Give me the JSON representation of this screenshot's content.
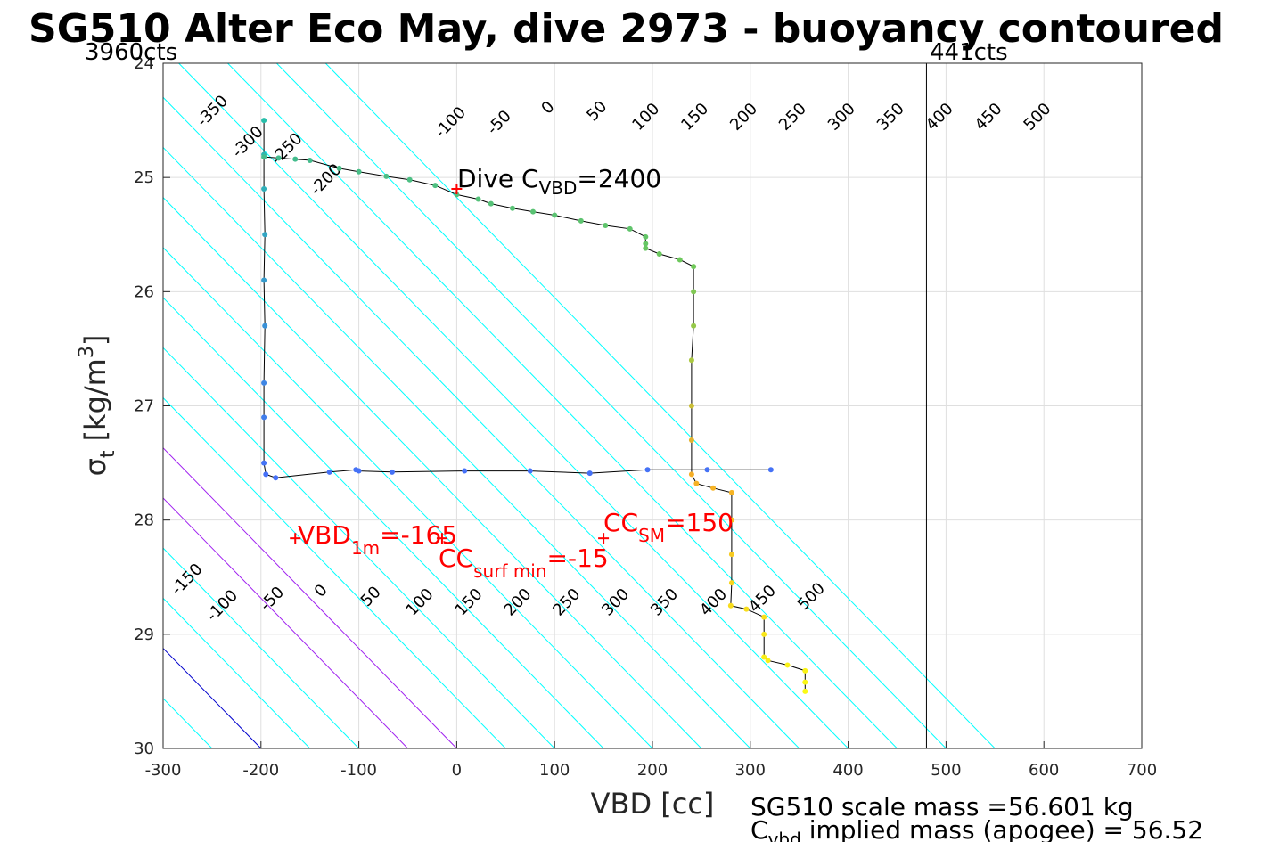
{
  "chart_data": {
    "type": "scatter",
    "title": "SG510 Alter Eco May, dive 2973 - buoyancy contoured",
    "xlabel": "VBD [cc]",
    "ylabel": "σt [kg/m3]",
    "ylabel_parts": {
      "sym": "σ",
      "sub": "t",
      "unit_pre": "[kg/m",
      "sup": "3",
      "unit_post": "]"
    },
    "xlim": [
      -300,
      700
    ],
    "ylim": [
      24,
      30
    ],
    "y_reversed": true,
    "grid": true,
    "x_ticks": [
      "-300",
      "-200",
      "-100",
      "0",
      "100",
      "200",
      "300",
      "400",
      "500",
      "600",
      "700"
    ],
    "y_ticks": [
      "24",
      "25",
      "26",
      "27",
      "28",
      "29",
      "30"
    ],
    "count_labels": {
      "left": "3960cts",
      "right": "441cts",
      "right_vbd": 480
    },
    "contour_slope_cc_per_sigma": 114,
    "contours": [
      {
        "level": -350,
        "color": "#00ffff"
      },
      {
        "level": -300,
        "color": "#00ffff"
      },
      {
        "level": -250,
        "color": "#00ffff"
      },
      {
        "level": -200,
        "color": "#00ffff"
      },
      {
        "level": -150,
        "color": "#00ffff"
      },
      {
        "level": -100,
        "color": "#00ffff"
      },
      {
        "level": -50,
        "color": "#00ffff"
      },
      {
        "level": 0,
        "color": "#0000cc"
      },
      {
        "level": 50,
        "color": "#00ffff"
      },
      {
        "level": 100,
        "color": "#00ffff"
      },
      {
        "level": 150,
        "color": "#a020f0"
      },
      {
        "level": 200,
        "color": "#a020f0"
      },
      {
        "level": 250,
        "color": "#00ffff"
      },
      {
        "level": 300,
        "color": "#00ffff"
      },
      {
        "level": 350,
        "color": "#00ffff"
      },
      {
        "level": 400,
        "color": "#00ffff"
      },
      {
        "level": 450,
        "color": "#00ffff"
      },
      {
        "level": 500,
        "color": "#00ffff"
      },
      {
        "level": 550,
        "color": "#00ffff"
      },
      {
        "level": 600,
        "color": "#00ffff"
      },
      {
        "level": 650,
        "color": "#00ffff"
      },
      {
        "level": 700,
        "color": "#00ffff"
      },
      {
        "level": 750,
        "color": "#00ffff"
      }
    ],
    "contour_labels_top": [
      {
        "text": "-350",
        "vbd": -246,
        "sigma": 24.45
      },
      {
        "text": "-300",
        "vbd": -210,
        "sigma": 24.72
      },
      {
        "text": "-250",
        "vbd": -170,
        "sigma": 24.78
      },
      {
        "text": "-200",
        "vbd": -130,
        "sigma": 25.05
      },
      {
        "text": "-100",
        "vbd": -3,
        "sigma": 24.55
      },
      {
        "text": "-50",
        "vbd": 47,
        "sigma": 24.55
      },
      {
        "text": "0",
        "vbd": 97,
        "sigma": 24.42
      },
      {
        "text": "50",
        "vbd": 147,
        "sigma": 24.45
      },
      {
        "text": "100",
        "vbd": 197,
        "sigma": 24.5
      },
      {
        "text": "150",
        "vbd": 247,
        "sigma": 24.5
      },
      {
        "text": "200",
        "vbd": 297,
        "sigma": 24.5
      },
      {
        "text": "250",
        "vbd": 347,
        "sigma": 24.5
      },
      {
        "text": "300",
        "vbd": 397,
        "sigma": 24.5
      },
      {
        "text": "350",
        "vbd": 447,
        "sigma": 24.5
      },
      {
        "text": "400",
        "vbd": 497,
        "sigma": 24.5
      },
      {
        "text": "450",
        "vbd": 547,
        "sigma": 24.5
      },
      {
        "text": "500",
        "vbd": 597,
        "sigma": 24.5
      }
    ],
    "contour_labels_bottom": [
      {
        "text": "-150",
        "vbd": -272,
        "sigma": 28.55
      },
      {
        "text": "-100",
        "vbd": -236,
        "sigma": 28.78
      },
      {
        "text": "-50",
        "vbd": -185,
        "sigma": 28.72
      },
      {
        "text": "0",
        "vbd": -135,
        "sigma": 28.65
      },
      {
        "text": "50",
        "vbd": -84,
        "sigma": 28.7
      },
      {
        "text": "100",
        "vbd": -34,
        "sigma": 28.75
      },
      {
        "text": "150",
        "vbd": 16,
        "sigma": 28.75
      },
      {
        "text": "200",
        "vbd": 66,
        "sigma": 28.75
      },
      {
        "text": "250",
        "vbd": 116,
        "sigma": 28.75
      },
      {
        "text": "300",
        "vbd": 166,
        "sigma": 28.75
      },
      {
        "text": "350",
        "vbd": 216,
        "sigma": 28.75
      },
      {
        "text": "400",
        "vbd": 266,
        "sigma": 28.75
      },
      {
        "text": "450",
        "vbd": 316,
        "sigma": 28.72
      },
      {
        "text": "500",
        "vbd": 366,
        "sigma": 28.7
      }
    ],
    "profile": [
      {
        "vbd": -197,
        "sigma": 24.82
      },
      {
        "vbd": -182,
        "sigma": 24.83
      },
      {
        "vbd": -165,
        "sigma": 24.84
      },
      {
        "vbd": -150,
        "sigma": 24.85
      },
      {
        "vbd": -120,
        "sigma": 24.92
      },
      {
        "vbd": -100,
        "sigma": 24.95
      },
      {
        "vbd": -72,
        "sigma": 24.99
      },
      {
        "vbd": -48,
        "sigma": 25.02
      },
      {
        "vbd": -22,
        "sigma": 25.07
      },
      {
        "vbd": 0,
        "sigma": 25.15
      },
      {
        "vbd": 22,
        "sigma": 25.19
      },
      {
        "vbd": 35,
        "sigma": 25.23
      },
      {
        "vbd": 57,
        "sigma": 25.27
      },
      {
        "vbd": 78,
        "sigma": 25.3
      },
      {
        "vbd": 100,
        "sigma": 25.33
      },
      {
        "vbd": 127,
        "sigma": 25.38
      },
      {
        "vbd": 152,
        "sigma": 25.42
      },
      {
        "vbd": 177,
        "sigma": 25.45
      },
      {
        "vbd": 193,
        "sigma": 25.52
      },
      {
        "vbd": 193,
        "sigma": 25.58
      },
      {
        "vbd": 193,
        "sigma": 25.62
      },
      {
        "vbd": 207,
        "sigma": 25.67
      },
      {
        "vbd": 228,
        "sigma": 25.72
      },
      {
        "vbd": 242,
        "sigma": 25.78
      },
      {
        "vbd": 242,
        "sigma": 26.0
      },
      {
        "vbd": 242,
        "sigma": 26.3
      },
      {
        "vbd": 240,
        "sigma": 26.6
      },
      {
        "vbd": 240,
        "sigma": 27.0
      },
      {
        "vbd": 240,
        "sigma": 27.3
      },
      {
        "vbd": 240,
        "sigma": 27.6
      },
      {
        "vbd": 245,
        "sigma": 27.68
      },
      {
        "vbd": 262,
        "sigma": 27.72
      },
      {
        "vbd": 281,
        "sigma": 27.76
      },
      {
        "vbd": 281,
        "sigma": 28.0
      },
      {
        "vbd": 281,
        "sigma": 28.3
      },
      {
        "vbd": 281,
        "sigma": 28.55
      },
      {
        "vbd": 280,
        "sigma": 28.75
      },
      {
        "vbd": 296,
        "sigma": 28.78
      },
      {
        "vbd": 314,
        "sigma": 28.85
      },
      {
        "vbd": 314,
        "sigma": 29.0
      },
      {
        "vbd": 314,
        "sigma": 29.2
      },
      {
        "vbd": 318,
        "sigma": 29.23
      },
      {
        "vbd": 338,
        "sigma": 29.27
      },
      {
        "vbd": 356,
        "sigma": 29.32
      },
      {
        "vbd": 356,
        "sigma": 29.42
      },
      {
        "vbd": 356,
        "sigma": 29.5
      }
    ],
    "profile_left": [
      {
        "vbd": -197,
        "sigma": 24.5
      },
      {
        "vbd": -197,
        "sigma": 24.8
      },
      {
        "vbd": -197,
        "sigma": 25.1
      },
      {
        "vbd": -196,
        "sigma": 25.5
      },
      {
        "vbd": -197,
        "sigma": 25.9
      },
      {
        "vbd": -196,
        "sigma": 26.3
      },
      {
        "vbd": -197,
        "sigma": 26.8
      },
      {
        "vbd": -197,
        "sigma": 27.1
      },
      {
        "vbd": -197,
        "sigma": 27.5
      },
      {
        "vbd": -195,
        "sigma": 27.6
      },
      {
        "vbd": -185,
        "sigma": 27.63
      },
      {
        "vbd": -130,
        "sigma": 27.58
      },
      {
        "vbd": -103,
        "sigma": 27.56
      },
      {
        "vbd": -100,
        "sigma": 27.57
      },
      {
        "vbd": -66,
        "sigma": 27.58
      },
      {
        "vbd": 8,
        "sigma": 27.57
      },
      {
        "vbd": 75,
        "sigma": 27.57
      },
      {
        "vbd": 136,
        "sigma": 27.59
      },
      {
        "vbd": 195,
        "sigma": 27.56
      },
      {
        "vbd": 256,
        "sigma": 27.56
      },
      {
        "vbd": 321,
        "sigma": 27.56
      }
    ],
    "markers": [
      {
        "label": "Dive C_VBD",
        "value": "2400",
        "vbd": 0,
        "sigma": 25.1,
        "color": "#ff0000"
      },
      {
        "label": "VBD_1m",
        "value": "-165",
        "vbd": -165,
        "sigma": 28.16,
        "color": "#ff0000"
      },
      {
        "label": "CC_surf min",
        "value": "-15",
        "vbd": -15,
        "sigma": 28.16,
        "color": "#ff0000"
      },
      {
        "label": "CC_SM",
        "value": "150",
        "vbd": 150,
        "sigma": 28.16,
        "color": "#ff0000"
      }
    ],
    "annotations": {
      "dive_cvbd": {
        "pre": "Dive C",
        "sub": "VBD",
        "post": "=2400"
      },
      "vbd1m": {
        "pre": "VBD",
        "sub": "1m",
        "post": "=-165"
      },
      "ccsurf": {
        "pre": "CC",
        "sub": "surf min",
        "post": "=-15"
      },
      "ccsm": {
        "pre": "CC",
        "sub": "SM",
        "post": "=150"
      }
    },
    "footer": {
      "line1": "SG510 scale mass =56.601 kg",
      "line2_pre": "C",
      "line2_sub": "vbd",
      "line2_post": " implied mass (apogee) = 56.52"
    }
  }
}
